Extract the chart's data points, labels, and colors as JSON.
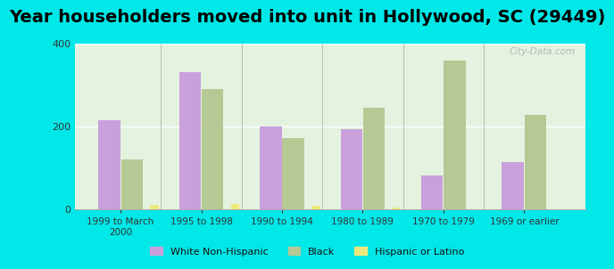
{
  "title": "Year householders moved into unit in Hollywood, SC (29449)",
  "categories": [
    "1999 to March\n2000",
    "1995 to 1998",
    "1990 to 1994",
    "1980 to 1989",
    "1970 to 1979",
    "1969 or earlier"
  ],
  "white_non_hispanic": [
    215,
    330,
    200,
    193,
    80,
    113
  ],
  "black": [
    120,
    290,
    172,
    245,
    358,
    228
  ],
  "hispanic_or_latino": [
    10,
    12,
    8,
    3,
    0,
    0
  ],
  "bar_colors": {
    "white": "#c9a0dc",
    "black": "#b5c994",
    "hispanic": "#ede87a"
  },
  "background_outer": "#00e8e8",
  "background_inner": "#e4f2e0",
  "ylim": [
    0,
    400
  ],
  "yticks": [
    0,
    200,
    400
  ],
  "title_fontsize": 14,
  "legend_labels": [
    "White Non-Hispanic",
    "Black",
    "Hispanic or Latino"
  ],
  "watermark": "City-Data.com"
}
